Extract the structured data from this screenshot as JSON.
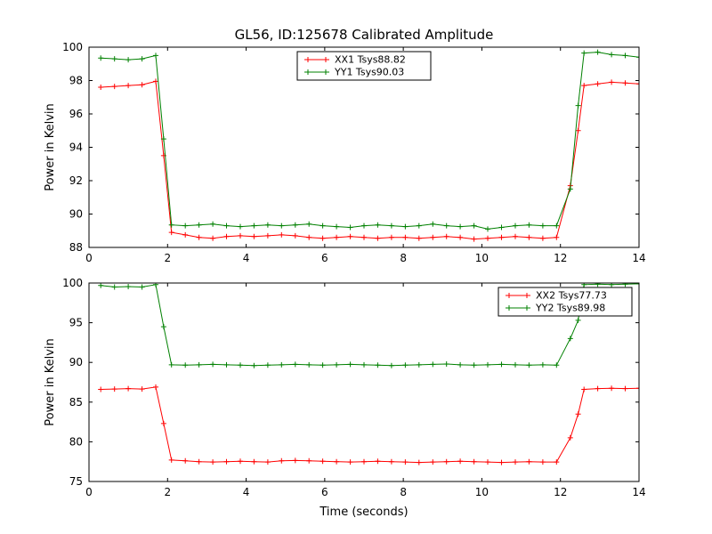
{
  "figure": {
    "title": "GL56, ID:125678 Calibrated Amplitude",
    "background": "#ffffff"
  },
  "colors": {
    "red": "#ff0000",
    "green": "#008000",
    "axis": "#000000"
  },
  "chart_data": [
    {
      "type": "line",
      "title": "",
      "xlabel": "",
      "ylabel": "Power in Kelvin",
      "xlim": [
        0,
        14
      ],
      "ylim": [
        88,
        100
      ],
      "xticks": [
        0,
        2,
        4,
        6,
        8,
        10,
        12,
        14
      ],
      "yticks": [
        88,
        90,
        92,
        94,
        96,
        98,
        100
      ],
      "grid": false,
      "legend_loc": "upper-center",
      "x": [
        0.3,
        0.65,
        1.0,
        1.35,
        1.7,
        1.9,
        2.1,
        2.45,
        2.8,
        3.15,
        3.5,
        3.85,
        4.2,
        4.55,
        4.9,
        5.25,
        5.6,
        5.95,
        6.3,
        6.65,
        7.0,
        7.35,
        7.7,
        8.05,
        8.4,
        8.75,
        9.1,
        9.45,
        9.8,
        10.15,
        10.5,
        10.85,
        11.2,
        11.55,
        11.9,
        12.25,
        12.45,
        12.6,
        12.95,
        13.3,
        13.65,
        14.0
      ],
      "series": [
        {
          "name": "XX1 Tsys88.82",
          "color": "#ff0000",
          "marker": "+",
          "values": [
            97.6,
            97.65,
            97.7,
            97.75,
            97.95,
            93.5,
            88.9,
            88.75,
            88.6,
            88.55,
            88.65,
            88.7,
            88.65,
            88.7,
            88.75,
            88.7,
            88.6,
            88.55,
            88.6,
            88.65,
            88.6,
            88.55,
            88.6,
            88.6,
            88.55,
            88.6,
            88.65,
            88.6,
            88.5,
            88.55,
            88.6,
            88.65,
            88.6,
            88.55,
            88.6,
            91.7,
            95.0,
            97.7,
            97.8,
            97.9,
            97.85,
            97.8
          ]
        },
        {
          "name": "YY1 Tsys90.03",
          "color": "#008000",
          "marker": "+",
          "values": [
            99.35,
            99.3,
            99.25,
            99.3,
            99.5,
            94.5,
            89.35,
            89.3,
            89.35,
            89.4,
            89.3,
            89.25,
            89.3,
            89.35,
            89.3,
            89.35,
            89.4,
            89.3,
            89.25,
            89.2,
            89.3,
            89.35,
            89.3,
            89.25,
            89.3,
            89.4,
            89.3,
            89.25,
            89.3,
            89.1,
            89.2,
            89.3,
            89.35,
            89.3,
            89.3,
            91.5,
            96.5,
            99.65,
            99.7,
            99.55,
            99.5,
            99.4
          ]
        }
      ]
    },
    {
      "type": "line",
      "title": "",
      "xlabel": "Time (seconds)",
      "ylabel": "Power in Kelvin",
      "xlim": [
        0,
        14
      ],
      "ylim": [
        75,
        100
      ],
      "xticks": [
        0,
        2,
        4,
        6,
        8,
        10,
        12,
        14
      ],
      "yticks": [
        75,
        80,
        85,
        90,
        95,
        100
      ],
      "grid": false,
      "legend_loc": "upper-right",
      "x": [
        0.3,
        0.65,
        1.0,
        1.35,
        1.7,
        1.9,
        2.1,
        2.45,
        2.8,
        3.15,
        3.5,
        3.85,
        4.2,
        4.55,
        4.9,
        5.25,
        5.6,
        5.95,
        6.3,
        6.65,
        7.0,
        7.35,
        7.7,
        8.05,
        8.4,
        8.75,
        9.1,
        9.45,
        9.8,
        10.15,
        10.5,
        10.85,
        11.2,
        11.55,
        11.9,
        12.25,
        12.45,
        12.6,
        12.95,
        13.3,
        13.65,
        14.0
      ],
      "series": [
        {
          "name": "XX2 Tsys77.73",
          "color": "#ff0000",
          "marker": "+",
          "values": [
            86.6,
            86.65,
            86.7,
            86.65,
            86.9,
            82.3,
            77.7,
            77.6,
            77.5,
            77.45,
            77.5,
            77.55,
            77.5,
            77.45,
            77.6,
            77.65,
            77.6,
            77.55,
            77.5,
            77.45,
            77.5,
            77.55,
            77.5,
            77.45,
            77.4,
            77.45,
            77.5,
            77.55,
            77.5,
            77.45,
            77.4,
            77.45,
            77.5,
            77.45,
            77.45,
            80.5,
            83.5,
            86.6,
            86.7,
            86.75,
            86.7,
            86.75
          ]
        },
        {
          "name": "YY2 Tsys89.98",
          "color": "#008000",
          "marker": "+",
          "values": [
            99.7,
            99.5,
            99.55,
            99.5,
            99.8,
            94.5,
            89.7,
            89.65,
            89.7,
            89.75,
            89.7,
            89.65,
            89.6,
            89.65,
            89.7,
            89.75,
            89.7,
            89.65,
            89.7,
            89.75,
            89.7,
            89.65,
            89.6,
            89.65,
            89.7,
            89.75,
            89.8,
            89.7,
            89.65,
            89.7,
            89.75,
            89.7,
            89.65,
            89.7,
            89.65,
            93.0,
            95.3,
            99.8,
            99.85,
            99.8,
            99.85,
            99.9
          ]
        }
      ]
    }
  ]
}
